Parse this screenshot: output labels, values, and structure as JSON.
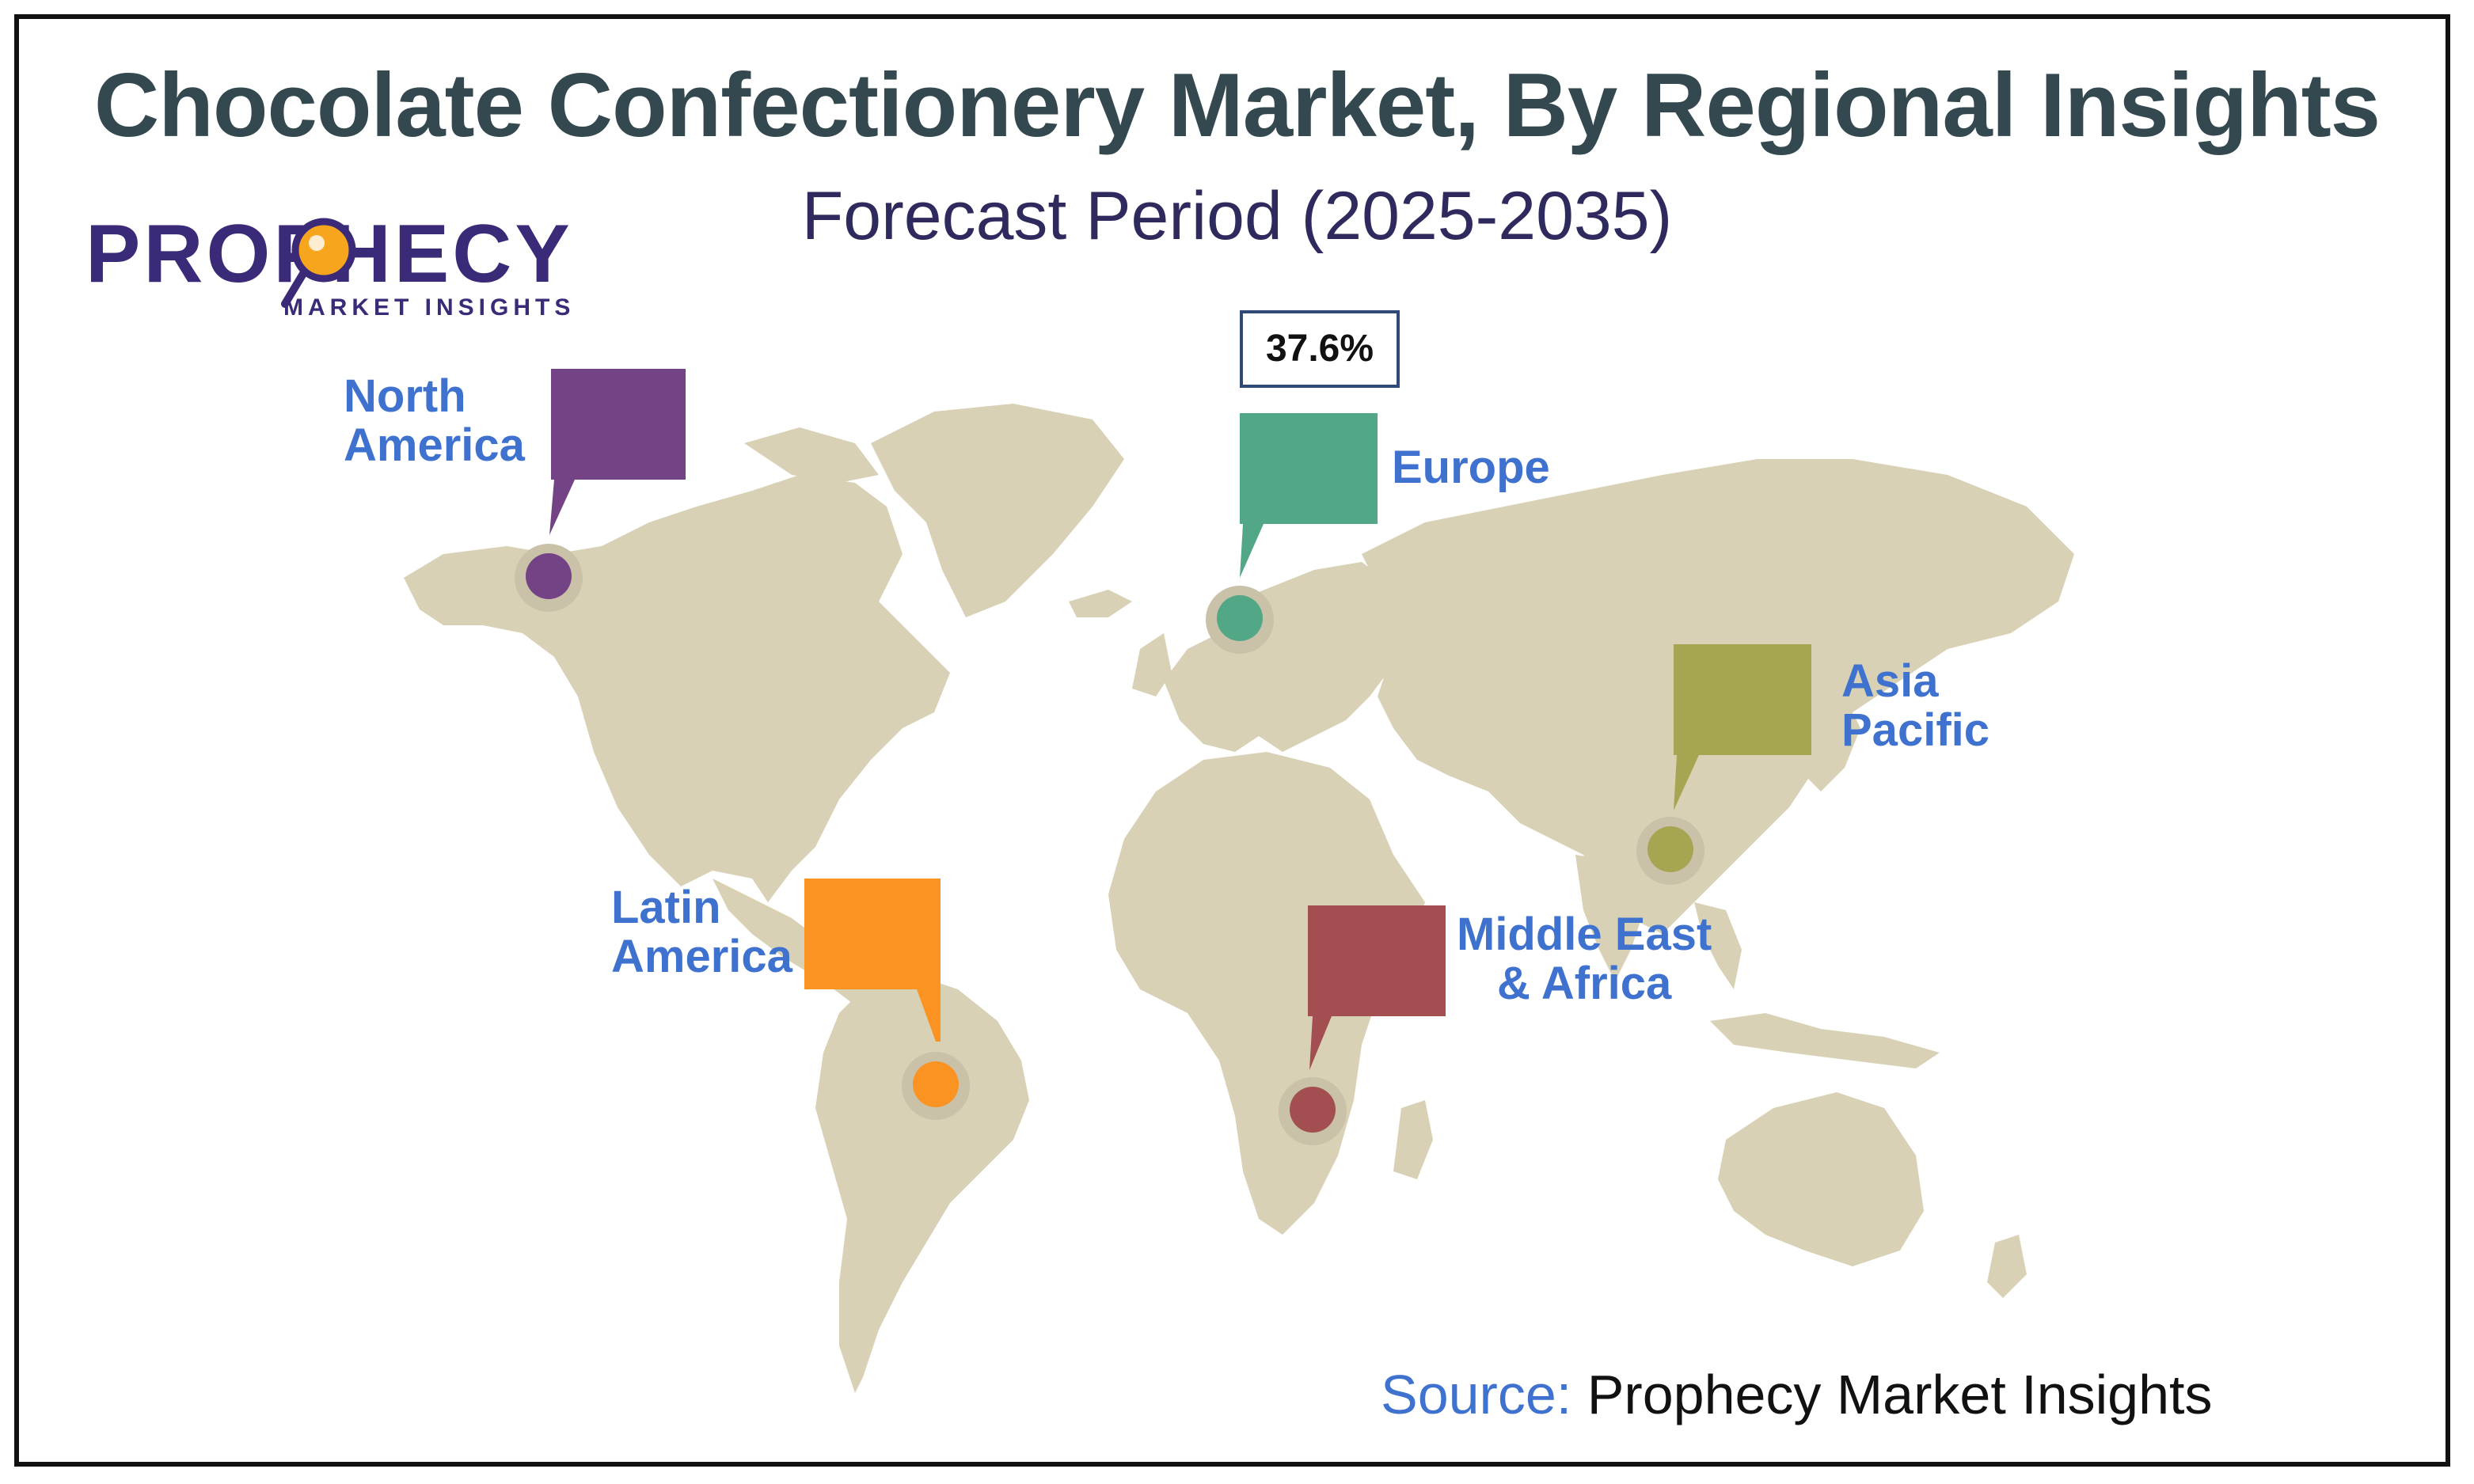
{
  "title": "Chocolate Confectionery Market, By Regional Insights",
  "subtitle": "Forecast Period (2025-2035)",
  "logo": {
    "name": "PROPHECY",
    "tagline": "MARKET INSIGHTS"
  },
  "regions": [
    {
      "key": "north_america",
      "line1": "North",
      "line2": "America",
      "color": "#744385"
    },
    {
      "key": "europe",
      "line1": "Europe",
      "line2": "",
      "color": "#52a787",
      "value": "37.6%"
    },
    {
      "key": "asia_pacific",
      "line1": "Asia",
      "line2": "Pacific",
      "color": "#a6a552"
    },
    {
      "key": "latin_america",
      "line1": "Latin",
      "line2": "America",
      "color": "#fb9322"
    },
    {
      "key": "mea",
      "line1": "Middle East",
      "line2": "& Africa",
      "color": "#a34f51"
    }
  ],
  "source": {
    "label": "Source:",
    "text": "Prophecy Market Insights"
  },
  "colors": {
    "land": "#d8d1b5",
    "title": "#33484f",
    "label": "#3f72cf"
  }
}
